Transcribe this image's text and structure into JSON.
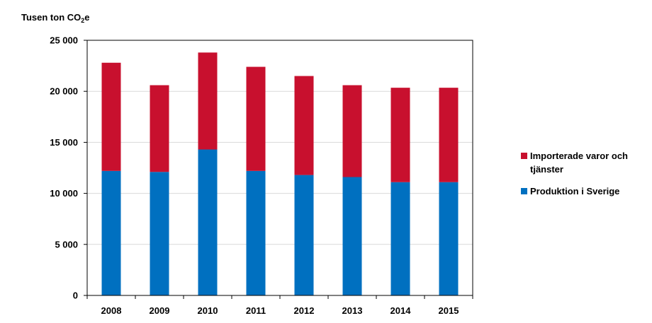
{
  "chart_data": {
    "type": "bar",
    "stacked": true,
    "ylabel_main": "Tusen ton CO",
    "ylabel_sub": "2",
    "ylabel_suffix": "e",
    "categories": [
      "2008",
      "2009",
      "2010",
      "2011",
      "2012",
      "2013",
      "2014",
      "2015"
    ],
    "series": [
      {
        "name": "Produktion i Sverige",
        "color": "#0070C0",
        "values": [
          12200,
          12100,
          14300,
          12200,
          11800,
          11600,
          11100,
          11100
        ]
      },
      {
        "name": "Importerade varor och tjänster",
        "color": "#C8102E",
        "values": [
          10600,
          8500,
          9500,
          10200,
          9700,
          9000,
          9250,
          9250
        ]
      }
    ],
    "ylim": [
      0,
      25000
    ],
    "yticks": [
      0,
      5000,
      10000,
      15000,
      20000,
      25000
    ],
    "ytick_labels": [
      "0",
      "5 000",
      "10 000",
      "15 000",
      "20 000",
      "25 000"
    ],
    "grid": true,
    "legend_position": "right"
  }
}
